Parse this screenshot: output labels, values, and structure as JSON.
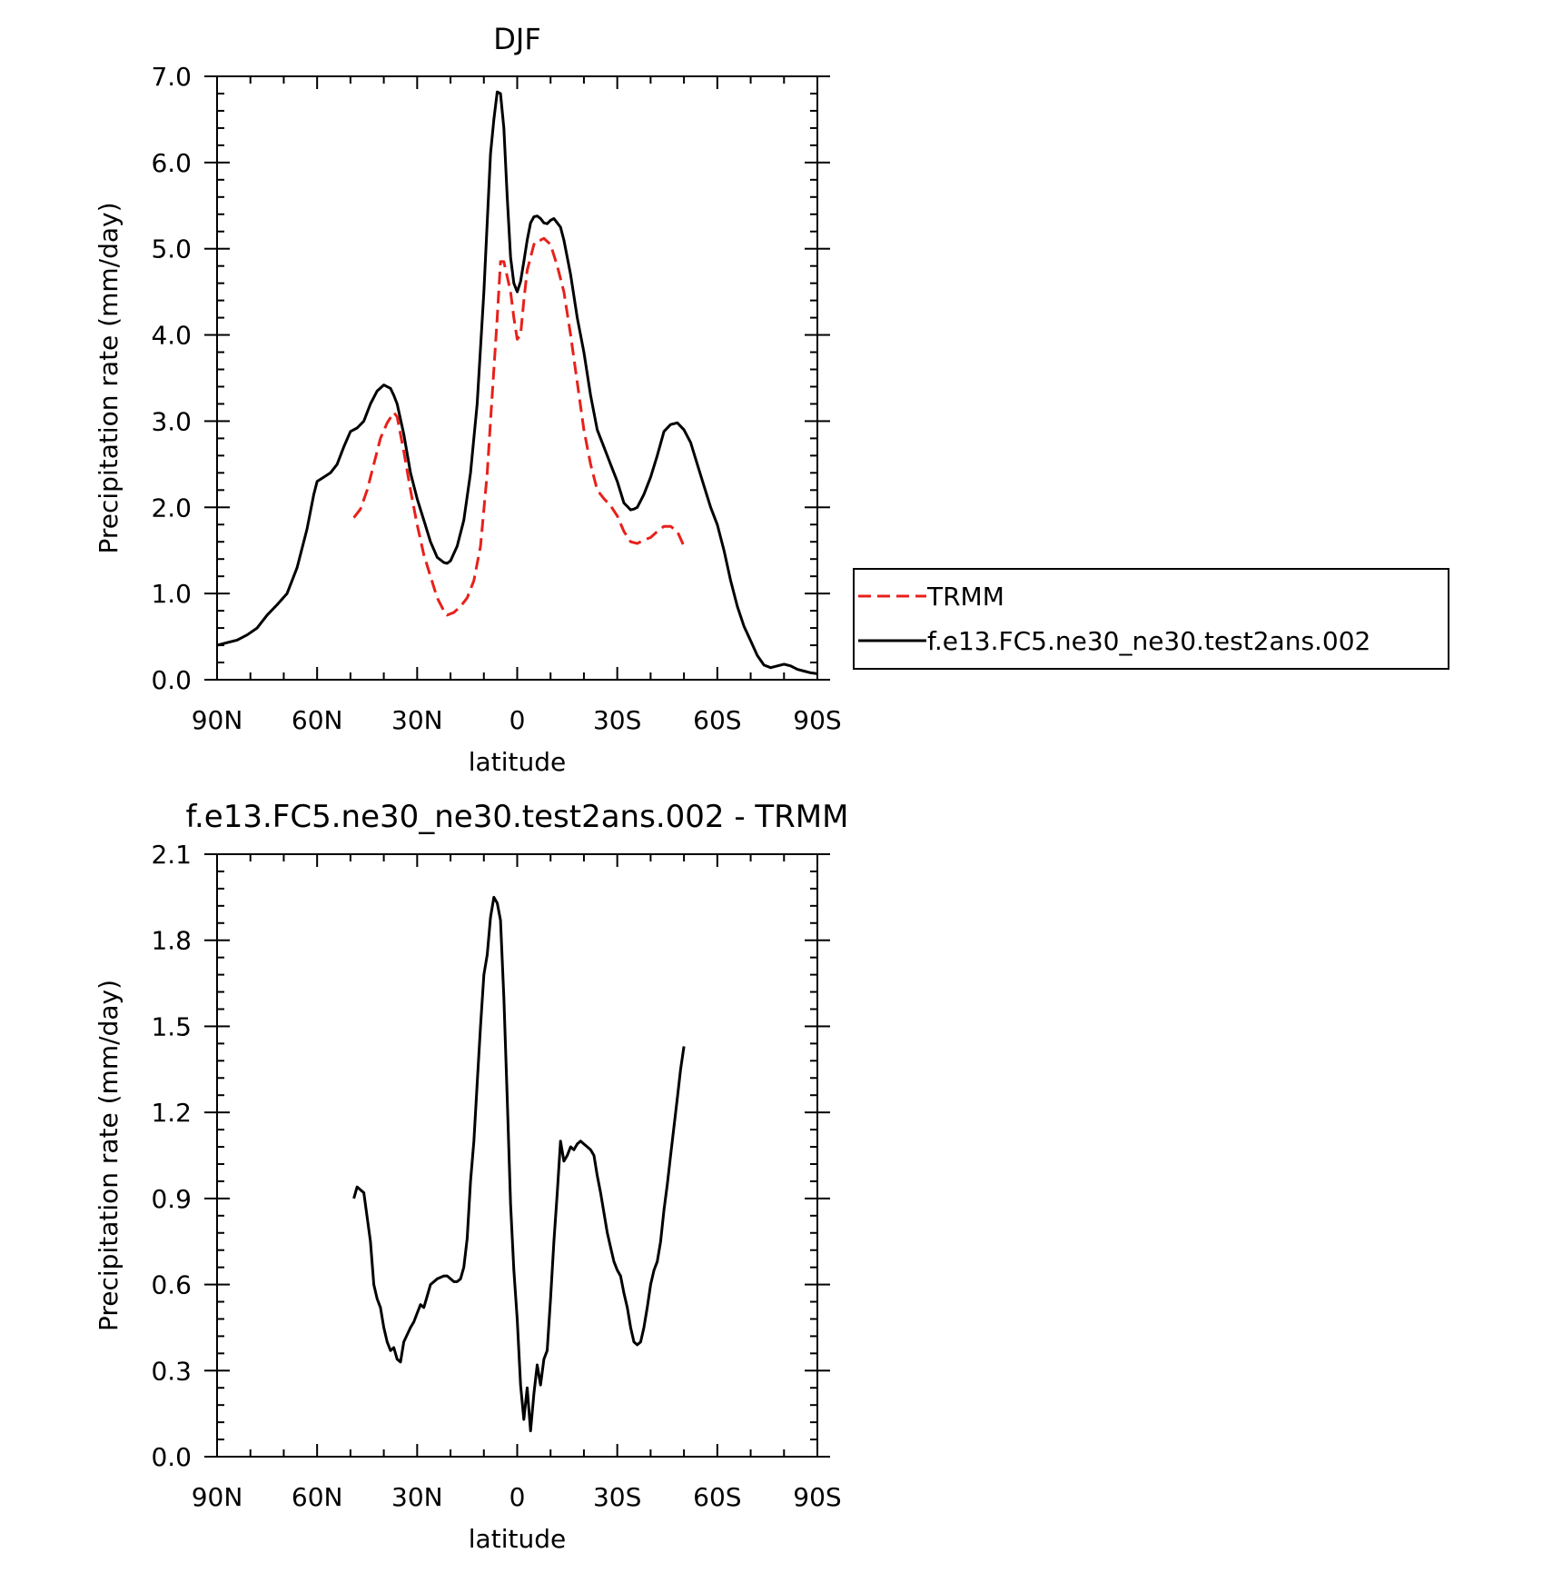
{
  "chart_data": [
    {
      "type": "line",
      "title": "DJF",
      "xlabel": "latitude",
      "ylabel": "Precipitation rate (mm/day)",
      "xlim": [
        -90,
        90
      ],
      "ylim": [
        0,
        7
      ],
      "x_ticks": [
        -90,
        -60,
        -30,
        0,
        30,
        60,
        90
      ],
      "x_tick_labels": [
        "90N",
        "60N",
        "30N",
        "0",
        "30S",
        "60S",
        "90S"
      ],
      "y_ticks": [
        0,
        1,
        2,
        3,
        4,
        5,
        6,
        7
      ],
      "y_tick_labels": [
        "0.0",
        "1.0",
        "2.0",
        "3.0",
        "4.0",
        "5.0",
        "6.0",
        "7.0"
      ],
      "legend_position": "outside-right",
      "series": [
        {
          "name": "TRMM",
          "color": "#e8201a",
          "dash": "dashed",
          "x": [
            -49,
            -47,
            -45,
            -43,
            -41,
            -39,
            -37,
            -36,
            -34,
            -32,
            -30,
            -28,
            -26,
            -24,
            -22,
            -21,
            -19,
            -17,
            -15,
            -13,
            -11,
            -9,
            -8,
            -7,
            -6,
            -5,
            -4,
            -2,
            -1,
            0,
            1,
            2,
            3,
            4,
            5,
            6,
            7,
            8,
            10,
            12,
            14,
            16,
            18,
            20,
            22,
            24,
            26,
            28,
            30,
            32,
            34,
            36,
            38,
            40,
            42,
            44,
            46,
            48,
            50
          ],
          "y": [
            1.88,
            1.98,
            2.2,
            2.5,
            2.8,
            2.98,
            3.1,
            3.05,
            2.65,
            2.2,
            1.8,
            1.45,
            1.2,
            0.95,
            0.8,
            0.75,
            0.78,
            0.85,
            0.95,
            1.15,
            1.55,
            2.4,
            3.0,
            3.6,
            4.2,
            4.85,
            4.85,
            4.5,
            4.2,
            3.95,
            4.0,
            4.4,
            4.75,
            4.9,
            5.05,
            5.1,
            5.1,
            5.12,
            5.05,
            4.8,
            4.5,
            4.0,
            3.45,
            2.9,
            2.5,
            2.2,
            2.1,
            2.02,
            1.9,
            1.72,
            1.6,
            1.58,
            1.62,
            1.65,
            1.72,
            1.78,
            1.78,
            1.72,
            1.55
          ]
        },
        {
          "name": "f.e13.FC5.ne30_ne30.test2ans.002",
          "color": "#000000",
          "dash": "solid",
          "x": [
            -90,
            -87,
            -84,
            -81,
            -78,
            -75,
            -72,
            -69,
            -66,
            -63,
            -61,
            -60,
            -58,
            -56,
            -54,
            -52,
            -50,
            -48,
            -46,
            -44,
            -42,
            -40,
            -38,
            -37,
            -36,
            -34,
            -32,
            -30,
            -28,
            -26,
            -24,
            -22,
            -21,
            -20,
            -18,
            -16,
            -14,
            -12,
            -10,
            -8,
            -7,
            -6,
            -5,
            -4,
            -3,
            -2,
            -1,
            0,
            1,
            2,
            3,
            4,
            5,
            6,
            7,
            8,
            9,
            10,
            11,
            12,
            13,
            14,
            16,
            18,
            20,
            22,
            24,
            26,
            28,
            30,
            32,
            34,
            35,
            36,
            38,
            40,
            42,
            44,
            46,
            48,
            50,
            52,
            54,
            56,
            58,
            60,
            62,
            64,
            66,
            68,
            70,
            72,
            74,
            76,
            78,
            80,
            82,
            84,
            86,
            88,
            90
          ],
          "y": [
            0.4,
            0.43,
            0.46,
            0.52,
            0.6,
            0.75,
            0.87,
            1.0,
            1.3,
            1.75,
            2.15,
            2.3,
            2.35,
            2.4,
            2.5,
            2.7,
            2.88,
            2.92,
            3.0,
            3.2,
            3.35,
            3.42,
            3.38,
            3.3,
            3.2,
            2.85,
            2.4,
            2.1,
            1.85,
            1.6,
            1.42,
            1.36,
            1.35,
            1.38,
            1.55,
            1.85,
            2.4,
            3.2,
            4.5,
            6.1,
            6.5,
            6.82,
            6.8,
            6.4,
            5.6,
            4.9,
            4.6,
            4.5,
            4.62,
            4.85,
            5.1,
            5.3,
            5.37,
            5.38,
            5.35,
            5.3,
            5.29,
            5.33,
            5.35,
            5.3,
            5.25,
            5.1,
            4.7,
            4.2,
            3.8,
            3.3,
            2.9,
            2.7,
            2.5,
            2.3,
            2.05,
            1.97,
            1.98,
            2.0,
            2.15,
            2.35,
            2.6,
            2.88,
            2.96,
            2.98,
            2.9,
            2.75,
            2.5,
            2.25,
            2.0,
            1.8,
            1.5,
            1.15,
            0.85,
            0.62,
            0.45,
            0.28,
            0.17,
            0.14,
            0.16,
            0.18,
            0.16,
            0.12,
            0.1,
            0.08,
            0.07
          ]
        }
      ]
    },
    {
      "type": "line",
      "title": "f.e13.FC5.ne30_ne30.test2ans.002 - TRMM",
      "xlabel": "latitude",
      "ylabel": "Precipitation rate (mm/day)",
      "xlim": [
        -90,
        90
      ],
      "ylim": [
        0,
        2.1
      ],
      "x_ticks": [
        -90,
        -60,
        -30,
        0,
        30,
        60,
        90
      ],
      "x_tick_labels": [
        "90N",
        "60N",
        "30N",
        "0",
        "30S",
        "60S",
        "90S"
      ],
      "y_ticks": [
        0,
        0.3,
        0.6,
        0.9,
        1.2,
        1.5,
        1.8,
        2.1
      ],
      "y_tick_labels": [
        "0.0",
        "0.3",
        "0.6",
        "0.9",
        "1.2",
        "1.5",
        "1.8",
        "2.1"
      ],
      "series": [
        {
          "color": "#000000",
          "dash": "solid",
          "x": [
            -49,
            -48,
            -46,
            -44,
            -43,
            -42,
            -41,
            -40,
            -39,
            -38,
            -37,
            -36,
            -35,
            -34,
            -32,
            -31,
            -30,
            -29,
            -28,
            -27,
            -26,
            -24,
            -22,
            -21,
            -20,
            -19,
            -18,
            -17,
            -16,
            -15,
            -14,
            -13,
            -12,
            -11,
            -10,
            -9,
            -8,
            -7,
            -6,
            -5,
            -4,
            -3,
            -2,
            -1,
            0,
            1,
            2,
            3,
            4,
            5,
            6,
            7,
            8,
            9,
            10,
            11,
            12,
            13,
            14,
            15,
            16,
            17,
            18,
            19,
            20,
            21,
            22,
            23,
            24,
            25,
            26,
            27,
            28,
            29,
            30,
            31,
            32,
            33,
            34,
            35,
            36,
            37,
            38,
            39,
            40,
            41,
            42,
            43,
            44,
            45,
            46,
            47,
            48,
            49,
            50
          ],
          "y": [
            0.9,
            0.94,
            0.92,
            0.75,
            0.6,
            0.55,
            0.52,
            0.45,
            0.4,
            0.37,
            0.38,
            0.34,
            0.33,
            0.4,
            0.45,
            0.47,
            0.5,
            0.53,
            0.52,
            0.56,
            0.6,
            0.62,
            0.63,
            0.63,
            0.62,
            0.61,
            0.61,
            0.62,
            0.66,
            0.76,
            0.96,
            1.1,
            1.3,
            1.5,
            1.68,
            1.75,
            1.88,
            1.95,
            1.93,
            1.87,
            1.6,
            1.25,
            0.88,
            0.65,
            0.48,
            0.25,
            0.13,
            0.24,
            0.09,
            0.22,
            0.32,
            0.25,
            0.34,
            0.37,
            0.55,
            0.75,
            0.92,
            1.1,
            1.03,
            1.05,
            1.08,
            1.07,
            1.09,
            1.1,
            1.09,
            1.08,
            1.07,
            1.05,
            0.98,
            0.92,
            0.85,
            0.78,
            0.73,
            0.68,
            0.65,
            0.63,
            0.57,
            0.52,
            0.45,
            0.4,
            0.39,
            0.4,
            0.45,
            0.52,
            0.6,
            0.65,
            0.68,
            0.75,
            0.86,
            0.95,
            1.05,
            1.15,
            1.25,
            1.35,
            1.43
          ]
        }
      ]
    }
  ],
  "legend": {
    "items": [
      {
        "label": "TRMM",
        "color": "#e8201a",
        "dash": "dashed"
      },
      {
        "label": "f.e13.FC5.ne30_ne30.test2ans.002",
        "color": "#000000",
        "dash": "solid"
      }
    ]
  }
}
